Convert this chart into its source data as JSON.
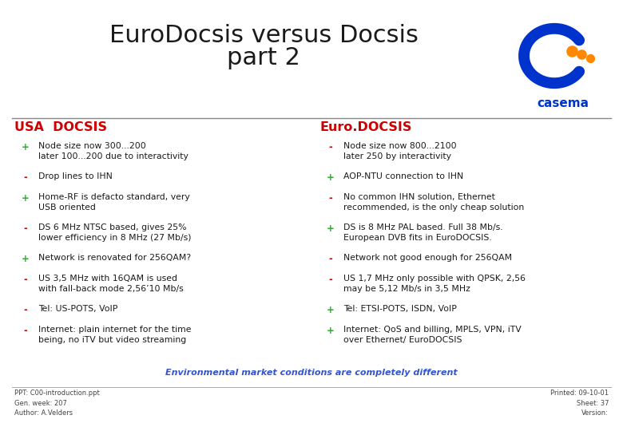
{
  "title_line1": "EuroDocsis versus Docsis",
  "title_line2": "part 2",
  "title_color": "#1a1a1a",
  "title_fontsize": 22,
  "left_header": "USA  DOCSIS",
  "right_header": "Euro.DOCSIS",
  "header_color": "#cc0000",
  "header_fontsize": 11.5,
  "plus_color": "#33aa33",
  "minus_color": "#cc0000",
  "text_color": "#1a1a1a",
  "body_fontsize": 7.8,
  "left_items": [
    [
      "+",
      "Node size now 300...200\nlater 100...200 due to interactivity"
    ],
    [
      "-",
      "Drop lines to IHN"
    ],
    [
      "+",
      "Home-RF is defacto standard, very\nUSB oriented"
    ],
    [
      "-",
      "DS 6 MHz NTSC based, gives 25%\nlower efficiency in 8 MHz (27 Mb/s)"
    ],
    [
      "+",
      "Network is renovated for 256QAM?"
    ],
    [
      "-",
      "US 3,5 MHz with 16QAM is used\nwith fall-back mode 2,56’10 Mb/s"
    ],
    [
      "-",
      "Tel: US-POTS, VoIP"
    ],
    [
      "-",
      "Internet: plain internet for the time\nbeing, no iTV but video streaming"
    ]
  ],
  "right_items": [
    [
      "-",
      "Node size now 800...2100\nlater 250 by interactivity"
    ],
    [
      "+",
      "AOP-NTU connection to IHN"
    ],
    [
      "-",
      "No common IHN solution, Ethernet\nrecommended, is the only cheap solution"
    ],
    [
      "+",
      "DS is 8 MHz PAL based. Full 38 Mb/s.\nEuropean DVB fits in EuroDOCSIS."
    ],
    [
      "-",
      "Network not good enough for 256QAM"
    ],
    [
      "-",
      "US 1,7 MHz only possible with QPSK, 2,56\nmay be 5,12 Mb/s in 3,5 MHz"
    ],
    [
      "+",
      "Tel: ETSI-POTS, ISDN, VoIP"
    ],
    [
      "+",
      "Internet: QoS and billing, MPLS, VPN, iTV\nover Ethernet/ EuroDOCSIS"
    ]
  ],
  "footer_text": "Environmental market conditions are completely different",
  "footer_color": "#3355cc",
  "footer_fontsize": 8.0,
  "footnote_left": "PPT: C00-introduction.ppt\nGen. week: 207\nAuthor: A.Velders",
  "footnote_right": "Printed: 09-10-01\nSheet: 37\nVersion:",
  "footnote_fontsize": 6.0,
  "footnote_color": "#444444",
  "bg_color": "#ffffff",
  "casema_blue": "#0033cc",
  "casema_orange": "#ff8800",
  "divider_color": "#888888"
}
